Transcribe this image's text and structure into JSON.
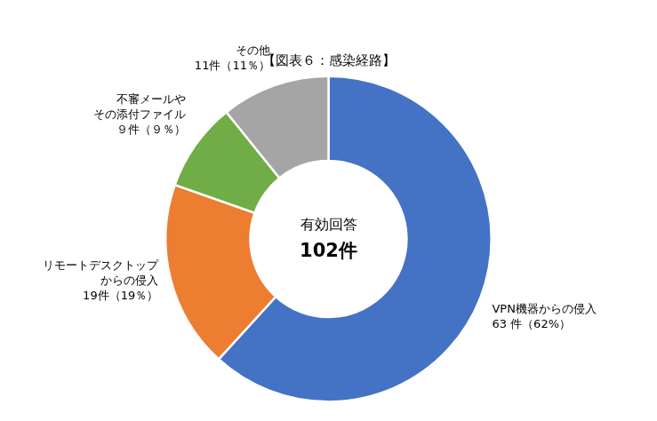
{
  "chart_data": {
    "type": "doughnut",
    "title": "【図表６：感染経路】",
    "categories": [
      "VPN機器からの侵入",
      "リモートデスクトップ\nからの侵入",
      "不審メールや\nその添付ファイル",
      "その他"
    ],
    "values": [
      63,
      19,
      9,
      11
    ],
    "value_labels": [
      "63 件（62%）",
      "19件（19％）",
      "９件（９％）",
      "11件（11％）"
    ],
    "colors": [
      "#4472C4",
      "#ED7D31",
      "#70AD47",
      "#A5A5A5"
    ],
    "annotations": [
      "有効回答",
      "102件"
    ],
    "data_labels": true
  }
}
